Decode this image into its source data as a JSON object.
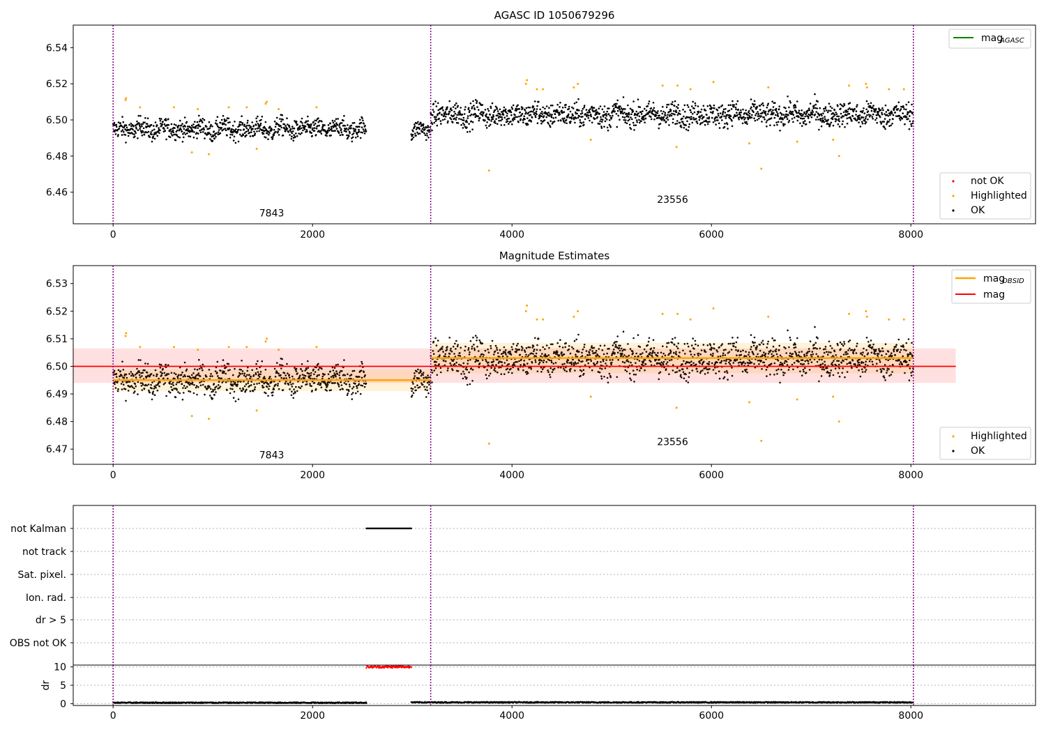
{
  "chart_data": [
    {
      "type": "scatter",
      "title": "AGASC ID 1050679296",
      "xlabel": "",
      "ylabel": "",
      "xlim": [
        -400,
        9250
      ],
      "ylim": [
        6.4425,
        6.5525
      ],
      "xticks": [
        0,
        2000,
        4000,
        6000,
        8000
      ],
      "yticks": [
        6.46,
        6.48,
        6.5,
        6.52,
        6.54
      ],
      "ytick_labels": [
        "6.46",
        "6.48",
        "6.50",
        "6.52",
        "6.54"
      ],
      "vlines": [
        0,
        3185,
        8025
      ],
      "obsid_labels": [
        {
          "text": "7843",
          "x": 1590,
          "y": 6.4465
        },
        {
          "text": "23556",
          "x": 5610,
          "y": 6.454
        }
      ],
      "legend_line": {
        "label": "mag",
        "sub": "AGASC",
        "color": "#008000",
        "placement": "top-right"
      },
      "legend_points": {
        "placement": "bottom-right",
        "items": [
          {
            "label": "not OK",
            "color": "#ff0000"
          },
          {
            "label": "Highlighted",
            "color": "#ffa500"
          },
          {
            "label": "OK",
            "color": "#000000"
          }
        ]
      },
      "series": [
        {
          "name": "OK",
          "color": "#000000",
          "segments": [
            {
              "x": [
                0,
                2540
              ],
              "center": 6.495,
              "spread": 0.0045
            },
            {
              "x": [
                2990,
                3185
              ],
              "center": 6.494,
              "spread": 0.004
            },
            {
              "x": [
                3185,
                8025
              ],
              "center": 6.503,
              "spread": 0.0055
            }
          ]
        },
        {
          "name": "Highlighted",
          "color": "#ffa500",
          "points": [
            [
              125,
              6.511
            ],
            [
              130,
              6.512
            ],
            [
              270,
              6.507
            ],
            [
              610,
              6.507
            ],
            [
              790,
              6.482
            ],
            [
              850,
              6.506
            ],
            [
              960,
              6.481
            ],
            [
              1160,
              6.507
            ],
            [
              1340,
              6.507
            ],
            [
              1440,
              6.484
            ],
            [
              1530,
              6.509
            ],
            [
              1540,
              6.51
            ],
            [
              1660,
              6.506
            ],
            [
              2040,
              6.507
            ],
            [
              3770,
              6.472
            ],
            [
              4140,
              6.52
            ],
            [
              4150,
              6.522
            ],
            [
              4250,
              6.517
            ],
            [
              4310,
              6.517
            ],
            [
              4620,
              6.518
            ],
            [
              4660,
              6.52
            ],
            [
              4790,
              6.489
            ],
            [
              5510,
              6.519
            ],
            [
              5650,
              6.485
            ],
            [
              5660,
              6.519
            ],
            [
              5790,
              6.517
            ],
            [
              6020,
              6.521
            ],
            [
              6380,
              6.487
            ],
            [
              6500,
              6.473
            ],
            [
              6570,
              6.518
            ],
            [
              6860,
              6.488
            ],
            [
              7220,
              6.489
            ],
            [
              7280,
              6.48
            ],
            [
              7380,
              6.519
            ],
            [
              7550,
              6.52
            ],
            [
              7560,
              6.518
            ],
            [
              7780,
              6.517
            ],
            [
              7930,
              6.517
            ]
          ]
        }
      ]
    },
    {
      "type": "scatter",
      "title": "Magnitude Estimates",
      "xlabel": "",
      "ylabel": "",
      "xlim": [
        -400,
        9250
      ],
      "ylim": [
        6.4645,
        6.5365
      ],
      "xticks": [
        0,
        2000,
        4000,
        6000,
        8000
      ],
      "yticks": [
        6.47,
        6.48,
        6.49,
        6.5,
        6.51,
        6.52,
        6.53
      ],
      "ytick_labels": [
        "6.47",
        "6.48",
        "6.49",
        "6.50",
        "6.51",
        "6.52",
        "6.53"
      ],
      "vlines": [
        0,
        3185,
        8025
      ],
      "obsid_labels": [
        {
          "text": "7843",
          "x": 1590,
          "y": 6.4666
        },
        {
          "text": "23556",
          "x": 5610,
          "y": 6.4715
        }
      ],
      "mag_line": {
        "label": "mag",
        "color": "#ff0000",
        "value": 6.5,
        "band": [
          6.494,
          6.5065
        ],
        "x": [
          -400,
          8450
        ]
      },
      "mag_obsid": {
        "label": "mag",
        "sub": "OBSID",
        "color": "#ffa500",
        "segments": [
          {
            "x": [
              0,
              3185
            ],
            "value": 6.495,
            "band": [
              6.491,
              6.499
            ]
          },
          {
            "x": [
              3185,
              8025
            ],
            "value": 6.503,
            "band": [
              6.4975,
              6.5085
            ]
          }
        ]
      },
      "legend_lines": {
        "placement": "top-right",
        "items": [
          {
            "label": "mag",
            "sub": "OBSID",
            "color": "#ffa500"
          },
          {
            "label": "mag",
            "sub": "",
            "color": "#ff0000"
          }
        ]
      },
      "legend_points": {
        "placement": "bottom-right",
        "items": [
          {
            "label": "Highlighted",
            "color": "#ffa500"
          },
          {
            "label": "OK",
            "color": "#000000"
          }
        ]
      }
    },
    {
      "type": "scatter",
      "title": "",
      "xlabel": "",
      "ylabel": "",
      "xlim": [
        -400,
        9250
      ],
      "xticks": [
        0,
        2000,
        4000,
        6000,
        8000
      ],
      "flag_rows": [
        "not Kalman",
        "not track",
        "Sat. pixel.",
        "Ion. rad.",
        "dr > 5",
        "OBS not OK"
      ],
      "flag_segments": [
        {
          "flag": "not Kalman",
          "x": [
            2540,
            2990
          ]
        }
      ],
      "vlines": [
        0,
        3185,
        8025
      ]
    },
    {
      "type": "scatter",
      "title": "",
      "xlabel": "",
      "ylabel": "dr",
      "xlim": [
        -400,
        9250
      ],
      "ylim": [
        -0.5,
        10.5
      ],
      "yticks": [
        0,
        5,
        10
      ],
      "ytick_labels": [
        "0",
        "5",
        "10"
      ],
      "xticks": [
        0,
        2000,
        4000,
        6000,
        8000
      ],
      "xtick_labels": [
        "0",
        "2000",
        "4000",
        "6000",
        "8000"
      ],
      "vlines": [
        0,
        3185,
        8025
      ],
      "series": [
        {
          "name": "dr",
          "color": "#000000",
          "segments": [
            {
              "x": [
                0,
                2540
              ],
              "value": 0.1
            },
            {
              "x": [
                2990,
                8025
              ],
              "value": 0.2
            }
          ]
        },
        {
          "name": "dr clipped",
          "color": "#ff0000",
          "segments": [
            {
              "x": [
                2540,
                2990
              ],
              "value": 10
            }
          ]
        }
      ]
    }
  ]
}
